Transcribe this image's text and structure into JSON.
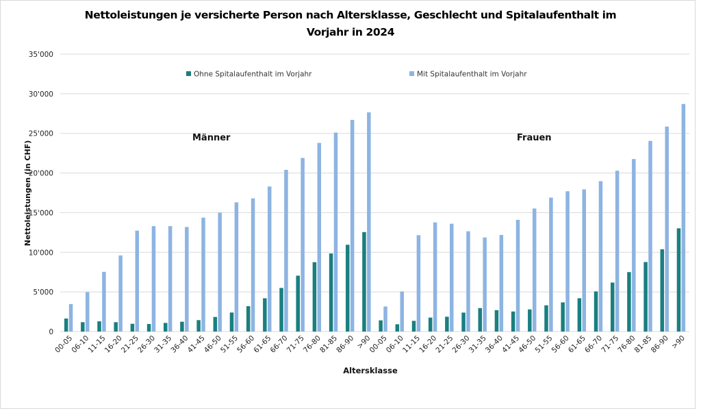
{
  "chart_data": {
    "type": "bar",
    "title": "Nettoleistungen je versicherte Person nach Altersklasse, Geschlecht und Spitalaufenthalt im Vorjahr in 2024",
    "title_lines": [
      "Nettoleistungen je versicherte Person nach Altersklasse, Geschlecht und Spitalaufenthalt im",
      "Vorjahr in 2024"
    ],
    "xlabel": "Altersklasse",
    "ylabel": "Nettoleistungen (in CHF)",
    "ylim": [
      0,
      35000
    ],
    "yticks": [
      0,
      5000,
      10000,
      15000,
      20000,
      25000,
      30000,
      35000
    ],
    "ytick_labels": [
      "0",
      "5'000",
      "10'000",
      "15'000",
      "20'000",
      "25'000",
      "30'000",
      "35'000"
    ],
    "grid": true,
    "legend_position": "top",
    "categories": [
      "00-05",
      "06-10",
      "11-15",
      "16-20",
      "21-25",
      "26-30",
      "31-35",
      "36-40",
      "41-45",
      "46-50",
      "51-55",
      "56-60",
      "61-65",
      "66-70",
      "71-75",
      "76-80",
      "81-85",
      "86-90",
      ">90",
      "00-05",
      "06-10",
      "11-15",
      "16-20",
      "21-25",
      "26-30",
      "31-35",
      "36-40",
      "41-45",
      "46-50",
      "51-55",
      "56-60",
      "61-65",
      "66-70",
      "71-75",
      "76-80",
      "81-85",
      "86-90",
      ">90"
    ],
    "groups": [
      {
        "label": "Männer",
        "start": 0,
        "count": 19
      },
      {
        "label": "Frauen",
        "start": 19,
        "count": 19
      }
    ],
    "series": [
      {
        "name": "Ohne Spitalaufenthalt im Vorjahr",
        "color": "#1a7f80",
        "values": [
          1640,
          1180,
          1290,
          1180,
          980,
          950,
          1090,
          1240,
          1440,
          1840,
          2400,
          3200,
          4200,
          5500,
          7050,
          8750,
          9850,
          10950,
          12550,
          1410,
          920,
          1350,
          1760,
          1870,
          2390,
          2960,
          2700,
          2530,
          2790,
          3310,
          3680,
          4200,
          5060,
          6180,
          7500,
          8770,
          10380,
          13020
        ]
      },
      {
        "name": "Mit Spitalaufenthalt im Vorjahr",
        "color": "#8db4e2",
        "values": [
          3470,
          4970,
          7530,
          9600,
          12730,
          13300,
          13300,
          13190,
          14370,
          15000,
          16300,
          16800,
          18300,
          20400,
          21900,
          23800,
          25100,
          26700,
          27650,
          3160,
          5060,
          12160,
          13770,
          13600,
          12650,
          11870,
          12190,
          14090,
          15520,
          16900,
          17700,
          17930,
          18970,
          20290,
          21760,
          24050,
          25860,
          28710
        ]
      }
    ],
    "annotations": [
      "Männer",
      "Frauen"
    ]
  }
}
